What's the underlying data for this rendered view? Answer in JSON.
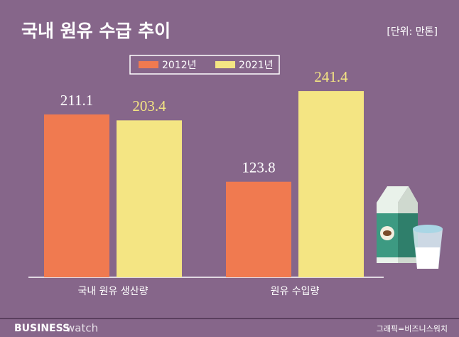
{
  "chart_data": {
    "type": "bar",
    "title": "국내 원유 수급 추이",
    "unit_note": "[단위: 만톤]",
    "categories": [
      "국내 원유 생산량",
      "원유 수입량"
    ],
    "series": [
      {
        "name": "2012년",
        "color": "#f07a50",
        "label_color": "#ffffff",
        "values": [
          211.1,
          123.8
        ]
      },
      {
        "name": "2021년",
        "color": "#f4e583",
        "label_color": "#f4e583",
        "values": [
          203.4,
          241.4
        ]
      }
    ],
    "brand": [
      "BUSINESS",
      "watch"
    ],
    "credit": "그래픽=비즈니스워치"
  }
}
